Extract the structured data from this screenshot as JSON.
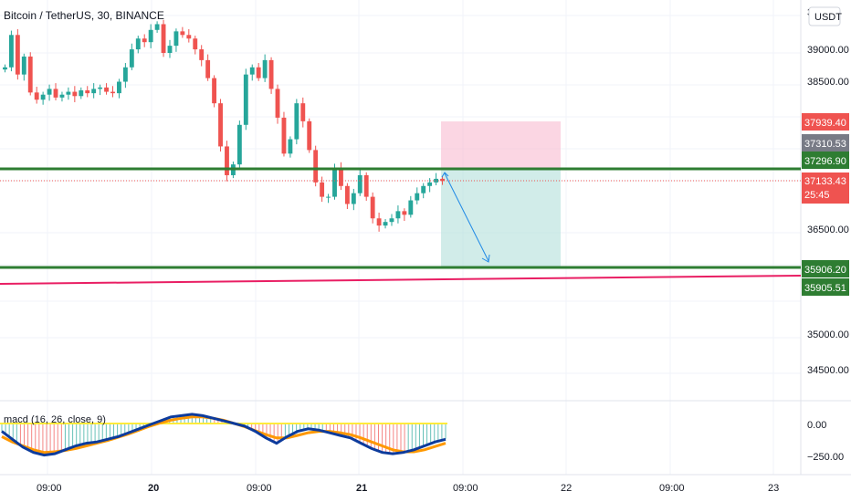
{
  "header": {
    "title": "Bitcoin / TetherUS, 30, BINANCE",
    "currency_button": "USDT",
    "top_tick_fragment": "3"
  },
  "colors": {
    "up": "#26a69a",
    "down": "#ef5350",
    "support_line": "#2e7d32",
    "trend_line": "#e91e63",
    "macd_line": "#0d3b9c",
    "signal_line": "#ff9800",
    "zero_line": "#ffeb3b",
    "stop_zone": "#f8bbd0",
    "target_zone": "#b2dfdb",
    "arrow": "#1e88e5"
  },
  "chart_data": {
    "type": "candlestick",
    "title": "Bitcoin / TetherUS, 30, BINANCE",
    "price_axis": {
      "ticks": [
        "39000.00",
        "38500.00",
        "36500.00",
        "35000.00",
        "34500.00"
      ],
      "ylim": [
        34250,
        39550
      ]
    },
    "time_axis": {
      "labels": [
        {
          "text": "09:00",
          "bold": false
        },
        {
          "text": "20",
          "bold": true
        },
        {
          "text": "09:00",
          "bold": false
        },
        {
          "text": "21",
          "bold": true
        },
        {
          "text": "09:00",
          "bold": false
        },
        {
          "text": "22",
          "bold": false
        },
        {
          "text": "09:00",
          "bold": false
        },
        {
          "text": "23",
          "bold": false
        }
      ]
    },
    "price_close_path": [
      38800,
      39250,
      38700,
      38950,
      38450,
      38350,
      38420,
      38500,
      38380,
      38420,
      38460,
      38400,
      38480,
      38440,
      38500,
      38520,
      38460,
      38440,
      38600,
      38800,
      39050,
      39200,
      39150,
      39320,
      39400,
      39000,
      39100,
      39300,
      39250,
      39200,
      39050,
      38900,
      38650,
      38300,
      37700,
      37300,
      37450,
      38000,
      38700,
      38800,
      38650,
      38900,
      38500,
      38100,
      37600,
      37800,
      38300,
      38050,
      37650,
      37200,
      37000,
      37000,
      37400,
      37150,
      36900,
      37050,
      37300,
      37000,
      36700,
      36600,
      36650,
      36700,
      36800,
      36750,
      36950,
      37050,
      37150,
      37200,
      37250,
      37220
    ],
    "horizontal_levels": [
      {
        "price": "37296.90",
        "role": "support"
      },
      {
        "price": "35906.20",
        "role": "support"
      }
    ],
    "trend_line": {
      "price": "35905.51"
    },
    "position": {
      "stop": "37939.40",
      "entry": "37296.90",
      "target": "35906.20"
    },
    "badges": [
      {
        "value": "37939.40",
        "color": "#ef5350"
      },
      {
        "value": "37310.53",
        "color": "#787b86"
      },
      {
        "value": "37296.90",
        "color": "#2e7d32"
      },
      {
        "value": "37133.43",
        "color": "#ef5350"
      },
      {
        "value": "25:45",
        "color": "#ef5350"
      },
      {
        "value": "35906.20",
        "color": "#2e7d32"
      },
      {
        "value": "35905.51",
        "color": "#2e7d32"
      }
    ],
    "indicator": {
      "label": "macd (16, 26, close, 9)",
      "ticks": [
        "0.00",
        "−250.00"
      ],
      "macd": [
        -60,
        -120,
        -180,
        -220,
        -240,
        -230,
        -200,
        -170,
        -150,
        -140,
        -120,
        -100,
        -70,
        -40,
        -10,
        20,
        50,
        60,
        70,
        60,
        40,
        20,
        0,
        -20,
        -60,
        -110,
        -150,
        -100,
        -60,
        -40,
        -50,
        -70,
        -90,
        -110,
        -150,
        -190,
        -220,
        -230,
        -220,
        -200,
        -170,
        -140,
        -120
      ],
      "signal": [
        -100,
        -140,
        -170,
        -200,
        -220,
        -215,
        -205,
        -190,
        -170,
        -150,
        -130,
        -105,
        -80,
        -50,
        -20,
        5,
        25,
        40,
        50,
        50,
        40,
        25,
        0,
        -25,
        -55,
        -85,
        -110,
        -110,
        -90,
        -70,
        -60,
        -60,
        -70,
        -85,
        -110,
        -140,
        -170,
        -200,
        -215,
        -215,
        -200,
        -175,
        -150
      ]
    }
  }
}
